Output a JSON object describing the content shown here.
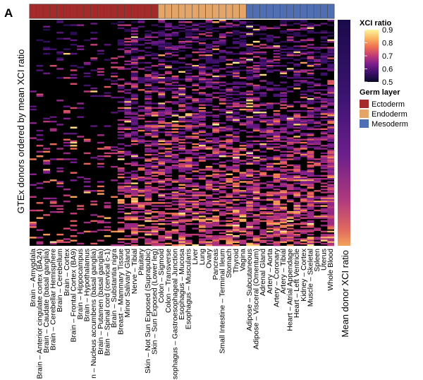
{
  "panel_label": "A",
  "chart_data": {
    "type": "heatmap",
    "title": "",
    "ylabel": "GTEx donors ordered by mean XCI ratio",
    "side_bar_label": "Mean donor XCI ratio",
    "colorbar": {
      "title": "XCI ratio",
      "min": 0.5,
      "max": 0.9,
      "ticks": [
        0.9,
        0.8,
        0.7,
        0.6,
        0.5
      ],
      "tick_labels": [
        "0.9",
        "0.8",
        "0.7",
        "0.6",
        "0.5"
      ],
      "colors": [
        "#0b0826",
        "#3b1069",
        "#7a1d8c",
        "#c03a76",
        "#ee6f52",
        "#fbb863",
        "#fcf5a0"
      ]
    },
    "germ_layer_legend": {
      "title": "Germ layer",
      "entries": [
        {
          "label": "Ectoderm",
          "color": "#a52a2a"
        },
        {
          "label": "Endoderm",
          "color": "#e3a568"
        },
        {
          "label": "Mesoderm",
          "color": "#4f6fb5"
        }
      ]
    },
    "tissues": [
      {
        "label": "Brain – Amygdala",
        "layer": "Ectoderm"
      },
      {
        "label": "Brain – Anterior cingulate cortex (BA24)",
        "layer": "Ectoderm"
      },
      {
        "label": "Brain – Caudate (basal ganglia)",
        "layer": "Ectoderm"
      },
      {
        "label": "Brain – Cerebellar Hemisphere",
        "layer": "Ectoderm"
      },
      {
        "label": "Brain – Cerebellum",
        "layer": "Ectoderm"
      },
      {
        "label": "Brain – Cortex",
        "layer": "Ectoderm"
      },
      {
        "label": "Brain – Frontal Cortex (BA9)",
        "layer": "Ectoderm"
      },
      {
        "label": "Brain – Hippocampus",
        "layer": "Ectoderm"
      },
      {
        "label": "Brain – Hypothalamus",
        "layer": "Ectoderm"
      },
      {
        "label": "n – Nucleus accumbens (basal ganglia)",
        "layer": "Ectoderm"
      },
      {
        "label": "Brain – Putamen (basal ganglia)",
        "layer": "Ectoderm"
      },
      {
        "label": "Brain – Spinal cord (cervical c-1)",
        "layer": "Ectoderm"
      },
      {
        "label": "Brain – Substantia nigra",
        "layer": "Ectoderm"
      },
      {
        "label": "Breast – Mammary Tissue",
        "layer": "Ectoderm"
      },
      {
        "label": "Minor Salivary Gland",
        "layer": "Ectoderm"
      },
      {
        "label": "Nerve – Tibial",
        "layer": "Ectoderm"
      },
      {
        "label": "Pituitary",
        "layer": "Ectoderm"
      },
      {
        "label": "Skin – Not Sun Exposed (Suprapubic)",
        "layer": "Ectoderm"
      },
      {
        "label": "Skin – Sun Exposed (Lower leg)",
        "layer": "Ectoderm"
      },
      {
        "label": "Colon – Sigmoid",
        "layer": "Endoderm"
      },
      {
        "label": "Colon – Transverse",
        "layer": "Endoderm"
      },
      {
        "label": "sophagus – Gastroesophageal Junction",
        "layer": "Endoderm"
      },
      {
        "label": "Esophagus – Mucosa",
        "layer": "Endoderm"
      },
      {
        "label": "Esophagus – Muscularis",
        "layer": "Endoderm"
      },
      {
        "label": "Liver",
        "layer": "Endoderm"
      },
      {
        "label": "Lung",
        "layer": "Endoderm"
      },
      {
        "label": "Ovary",
        "layer": "Endoderm"
      },
      {
        "label": "Pancreas",
        "layer": "Endoderm"
      },
      {
        "label": "Small Intestine – Terminal Ileum",
        "layer": "Endoderm"
      },
      {
        "label": "Stomach",
        "layer": "Endoderm"
      },
      {
        "label": "Thyroid",
        "layer": "Endoderm"
      },
      {
        "label": "Vagina",
        "layer": "Endoderm"
      },
      {
        "label": "Adipose – Subcutaneous",
        "layer": "Mesoderm"
      },
      {
        "label": "Adipose – Visceral (Omentum)",
        "layer": "Mesoderm"
      },
      {
        "label": "Adrenal Gland",
        "layer": "Mesoderm"
      },
      {
        "label": "Artery – Aorta",
        "layer": "Mesoderm"
      },
      {
        "label": "Artery – Coronary",
        "layer": "Mesoderm"
      },
      {
        "label": "Artery – Tibial",
        "layer": "Mesoderm"
      },
      {
        "label": "Heart – Atrial Appendage",
        "layer": "Mesoderm"
      },
      {
        "label": "Heart – Left Ventricle",
        "layer": "Mesoderm"
      },
      {
        "label": "Kidney – Cortex",
        "layer": "Mesoderm"
      },
      {
        "label": "Muscle – Skeletal",
        "layer": "Mesoderm"
      },
      {
        "label": "Spleen",
        "layer": "Mesoderm"
      },
      {
        "label": "Uterus",
        "layer": "Mesoderm"
      },
      {
        "label": "Whole Blood",
        "layer": "Mesoderm"
      }
    ],
    "donor_rows": 150,
    "tissue_sample_density": [
      0.12,
      0.12,
      0.1,
      0.12,
      0.12,
      0.12,
      0.12,
      0.1,
      0.1,
      0.1,
      0.1,
      0.1,
      0.12,
      0.4,
      0.45,
      0.58,
      0.3,
      0.55,
      0.55,
      0.5,
      0.5,
      0.45,
      0.55,
      0.55,
      0.48,
      0.55,
      0.5,
      0.45,
      0.45,
      0.55,
      0.58,
      0.42,
      0.6,
      0.52,
      0.5,
      0.48,
      0.48,
      0.5,
      0.5,
      0.5,
      0.4,
      0.62,
      0.38,
      0.5,
      0.75
    ]
  }
}
